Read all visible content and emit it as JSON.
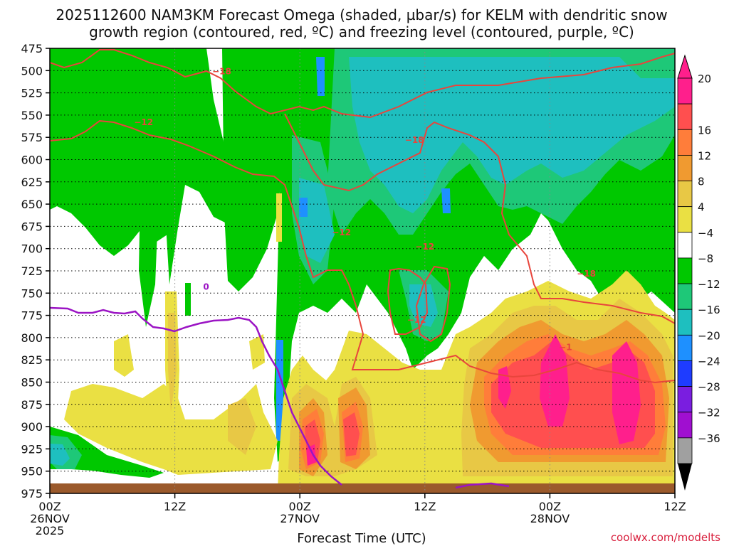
{
  "chart_data": {
    "type": "heatmap",
    "title_line1": "2025112600 NAM3KM Forecast Omega (shaded, µbar/s) for KELM with dendritic snow",
    "title_line2": "growth region (contoured, red, ºC) and freezing level (contoured, purple, ºC)",
    "xlabel": "Forecast Time (UTC)",
    "credit": "coolwx.com/modelts",
    "y_axis": {
      "reversed": true,
      "ylim": [
        975,
        475
      ],
      "ticks": [
        {
          "value": 475,
          "label": "475"
        },
        {
          "value": 500,
          "label": "500"
        },
        {
          "value": 525,
          "label": "525"
        },
        {
          "value": 550,
          "label": "550"
        },
        {
          "value": 575,
          "label": "575"
        },
        {
          "value": 600,
          "label": "600"
        },
        {
          "value": 625,
          "label": "625"
        },
        {
          "value": 650,
          "label": "650"
        },
        {
          "value": 675,
          "label": "675"
        },
        {
          "value": 700,
          "label": "700"
        },
        {
          "value": 725,
          "label": "725"
        },
        {
          "value": 750,
          "label": "750"
        },
        {
          "value": 775,
          "label": "775"
        },
        {
          "value": 800,
          "label": "800"
        },
        {
          "value": 825,
          "label": "825"
        },
        {
          "value": 850,
          "label": "850"
        },
        {
          "value": 875,
          "label": "875"
        },
        {
          "value": 900,
          "label": "900"
        },
        {
          "value": 925,
          "label": "925"
        },
        {
          "value": 950,
          "label": "950"
        },
        {
          "value": 975,
          "label": "975"
        }
      ]
    },
    "x_axis": {
      "xlim": [
        0,
        60
      ],
      "ticks": [
        {
          "hour": 0,
          "l1": "00Z",
          "l2": "26NOV",
          "l3": "2025"
        },
        {
          "hour": 12,
          "l1": "12Z",
          "l2": "",
          "l3": ""
        },
        {
          "hour": 24,
          "l1": "00Z",
          "l2": "27NOV",
          "l3": ""
        },
        {
          "hour": 36,
          "l1": "12Z",
          "l2": "",
          "l3": ""
        },
        {
          "hour": 48,
          "l1": "00Z",
          "l2": "28NOV",
          "l3": ""
        },
        {
          "hour": 60,
          "l1": "12Z",
          "l2": "",
          "l3": ""
        }
      ]
    },
    "grid": true,
    "colorbar": {
      "labels": [
        "20",
        "16",
        "12",
        "8",
        "4",
        "−4",
        "−8",
        "−12",
        "−16",
        "−20",
        "−24",
        "−28",
        "−32",
        "−36"
      ],
      "bins": [
        {
          "range": [
            20,
            24
          ],
          "color": "#ff1f8c"
        },
        {
          "range": [
            16,
            20
          ],
          "color": "#ff4f4f"
        },
        {
          "range": [
            12,
            16
          ],
          "color": "#ff7d3a"
        },
        {
          "range": [
            8,
            12
          ],
          "color": "#f09a30"
        },
        {
          "range": [
            4,
            8
          ],
          "color": "#e8c845"
        },
        {
          "range": [
            0,
            4
          ],
          "color": "#eae043"
        },
        {
          "range": [
            -4,
            4
          ],
          "color": "#ffffff"
        },
        {
          "range": [
            -8,
            -4
          ],
          "color": "#00c800"
        },
        {
          "range": [
            -12,
            -8
          ],
          "color": "#1ec878"
        },
        {
          "range": [
            -16,
            -12
          ],
          "color": "#1ebfbf"
        },
        {
          "range": [
            -20,
            -16
          ],
          "color": "#1e90ff"
        },
        {
          "range": [
            -24,
            -20
          ],
          "color": "#1e3cff"
        },
        {
          "range": [
            -28,
            -24
          ],
          "color": "#7a1ee0"
        },
        {
          "range": [
            -32,
            -28
          ],
          "color": "#a00fd0"
        },
        {
          "range": [
            -36,
            -32
          ],
          "color": "#a0a0a0"
        }
      ],
      "end_top_color": "#ff1f8c",
      "end_bottom_color": "#000000"
    },
    "contours": {
      "red_color": "#e8453c",
      "purple_color": "#9b14c4",
      "labels": [
        {
          "text": "−18",
          "hour": 16.5,
          "p": 501,
          "color": "red"
        },
        {
          "text": "−12",
          "hour": 9.0,
          "p": 558,
          "color": "red"
        },
        {
          "text": "−18",
          "hour": 35.0,
          "p": 578,
          "color": "red"
        },
        {
          "text": "−12",
          "hour": 28.0,
          "p": 682,
          "color": "red"
        },
        {
          "text": "−12",
          "hour": 36.0,
          "p": 698,
          "color": "red"
        },
        {
          "text": "−12",
          "hour": 35.2,
          "p": 780,
          "color": "red"
        },
        {
          "text": "−18",
          "hour": 51.5,
          "p": 728,
          "color": "red"
        },
        {
          "text": "−1",
          "hour": 49.5,
          "p": 811,
          "color": "red"
        },
        {
          "text": "0",
          "hour": 15.0,
          "p": 743,
          "color": "purple"
        }
      ]
    },
    "ground_color": "#9b5a2c"
  }
}
